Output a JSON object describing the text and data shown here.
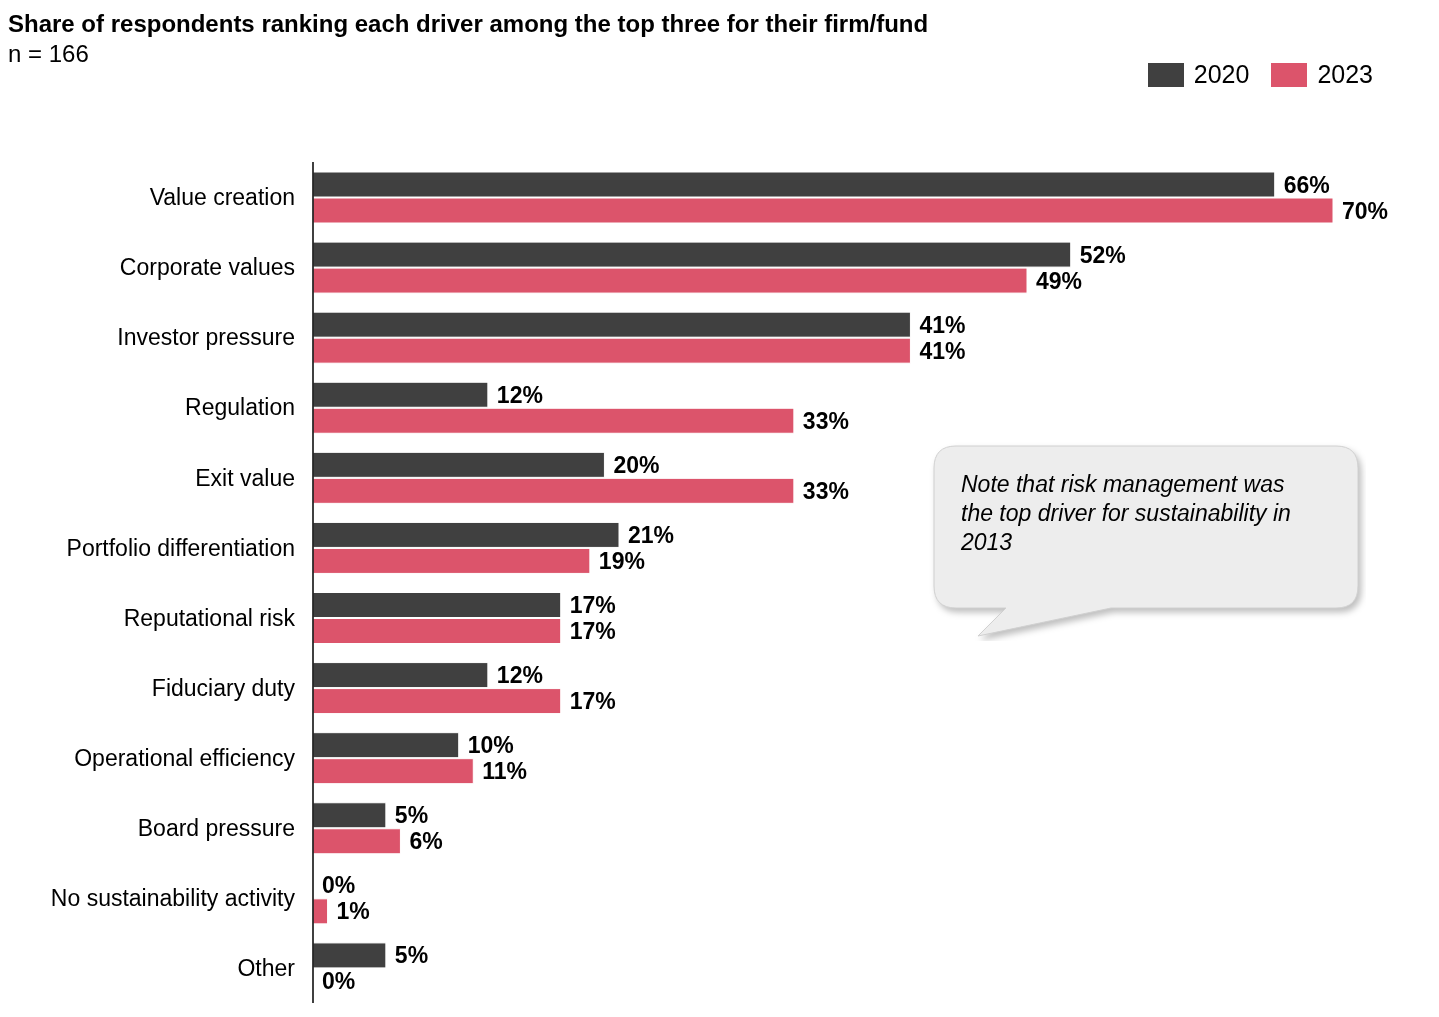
{
  "chart_data": {
    "type": "bar",
    "orientation": "horizontal",
    "title": "Share of respondents ranking each driver among the top three for their firm/fund",
    "subtitle": "n = 166",
    "categories": [
      "Value creation",
      "Corporate values",
      "Investor pressure",
      "Regulation",
      "Exit value",
      "Portfolio differentiation",
      "Reputational risk",
      "Fiduciary duty",
      "Operational efficiency",
      "Board pressure",
      "No sustainability activity",
      "Other"
    ],
    "series": [
      {
        "name": "2020",
        "color": "#404040",
        "values": [
          66,
          52,
          41,
          12,
          20,
          21,
          17,
          12,
          10,
          5,
          0,
          5
        ],
        "value_labels": [
          "66%",
          "52%",
          "41%",
          "12%",
          "20%",
          "21%",
          "17%",
          "12%",
          "10%",
          "5%",
          "0%",
          "5%"
        ]
      },
      {
        "name": "2023",
        "color": "#dc546b",
        "values": [
          70,
          49,
          41,
          33,
          33,
          19,
          17,
          17,
          11,
          6,
          1,
          0
        ],
        "value_labels": [
          "70%",
          "49%",
          "41%",
          "33%",
          "33%",
          "19%",
          "17%",
          "17%",
          "11%",
          "6%",
          "1%",
          "0%"
        ]
      }
    ],
    "tick_labels": "y",
    "legend": "top right",
    "annotations": [
      "Note that risk management was the top driver for sustainability in 2013"
    ]
  }
}
